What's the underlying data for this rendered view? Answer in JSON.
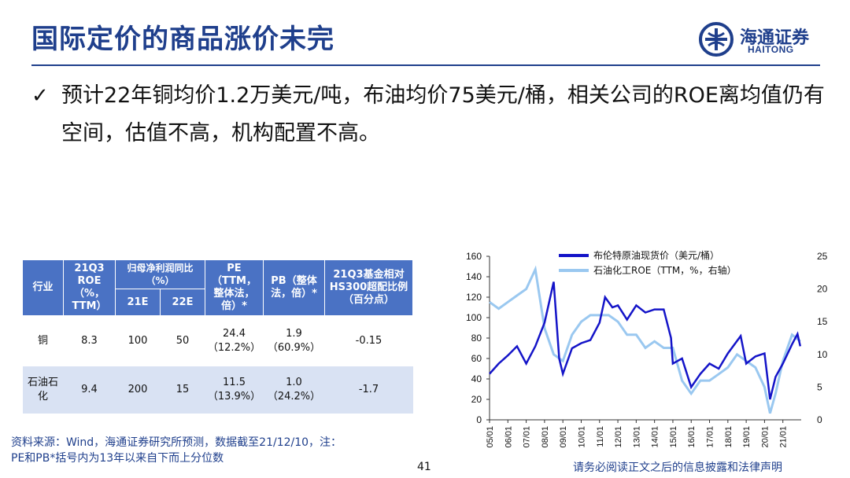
{
  "header": {
    "title": "国际定价的商品涨价未完",
    "logo_cn": "海通证券",
    "logo_en": "HAITONG"
  },
  "bullet": {
    "check": "✓",
    "text": "预计22年铜均价1.2万美元/吨，布油均价75美元/桶，相关公司的ROE离均值仍有空间，估值不高，机构配置不高。"
  },
  "table": {
    "headers": {
      "industry": "行业",
      "q3roe": "21Q3 ROE（%，TTM）",
      "profit_growth": "归母净利润同比（%）",
      "e21": "21E",
      "e22": "22E",
      "pe": "PE（TTM，整体法，倍）*",
      "pb": "PB（整体法，倍）*",
      "fund": "21Q3基金相对HS300超配比例（百分点）"
    },
    "rows": [
      {
        "industry": "铜",
        "roe": "8.3",
        "e21": "100",
        "e22": "50",
        "pe": "24.4",
        "pe_pct": "（12.2%）",
        "pb": "1.9",
        "pb_pct": "（60.9%）",
        "fund": "-0.15"
      },
      {
        "industry": "石油石化",
        "roe": "9.4",
        "e21": "200",
        "e22": "15",
        "pe": "11.5",
        "pe_pct": "（13.9%）",
        "pb": "1.0",
        "pb_pct": "（24.2%）",
        "fund": "-1.7"
      }
    ]
  },
  "source": {
    "line1": "资料来源：Wind，海通证券研究所预测，数据截至21/12/10，注：",
    "line2": "PE和PB*括号内为13年以来自下而上分位数"
  },
  "footer": {
    "page": "41",
    "disclaimer": "请务必阅读正文之后的信息披露和法律声明"
  },
  "chart_data": {
    "type": "line",
    "x_ticks": [
      "05/01",
      "06/01",
      "07/01",
      "08/01",
      "09/01",
      "10/01",
      "11/01",
      "12/01",
      "13/01",
      "14/01",
      "15/01",
      "16/01",
      "17/01",
      "18/01",
      "19/01",
      "20/01",
      "21/01"
    ],
    "y_left": {
      "min": 0,
      "max": 160,
      "ticks": [
        0,
        20,
        40,
        60,
        80,
        100,
        120,
        140,
        160
      ]
    },
    "y_right": {
      "min": 0,
      "max": 25,
      "ticks": [
        0,
        5,
        10,
        15,
        20,
        25
      ]
    },
    "legend_position": "top-center",
    "colors": {
      "brent": "#1414c8",
      "roe": "#9ac8f0"
    },
    "series": [
      {
        "name": "布伦特原油现货价（美元/桶）",
        "axis": "left",
        "x": [
          2005.0,
          2005.5,
          2006.0,
          2006.5,
          2007.0,
          2007.5,
          2008.0,
          2008.5,
          2008.8,
          2009.0,
          2009.5,
          2010.0,
          2010.5,
          2011.0,
          2011.3,
          2011.7,
          2012.0,
          2012.5,
          2013.0,
          2013.5,
          2014.0,
          2014.5,
          2014.9,
          2015.0,
          2015.5,
          2016.0,
          2016.5,
          2017.0,
          2017.5,
          2018.0,
          2018.7,
          2019.0,
          2019.5,
          2020.0,
          2020.3,
          2020.6,
          2021.0,
          2021.5,
          2021.8,
          2021.95
        ],
        "y": [
          45,
          55,
          63,
          72,
          55,
          72,
          95,
          135,
          60,
          45,
          70,
          75,
          78,
          95,
          120,
          110,
          112,
          98,
          112,
          105,
          108,
          108,
          80,
          55,
          60,
          32,
          45,
          55,
          50,
          65,
          82,
          55,
          62,
          65,
          20,
          42,
          55,
          74,
          84,
          72
        ]
      },
      {
        "name": "石油化工ROE（TTM，%，右轴）",
        "axis": "right",
        "x": [
          2005.0,
          2005.5,
          2006.0,
          2006.5,
          2007.0,
          2007.5,
          2008.0,
          2008.5,
          2009.0,
          2009.5,
          2010.0,
          2010.5,
          2011.0,
          2011.5,
          2012.0,
          2012.5,
          2013.0,
          2013.5,
          2014.0,
          2014.5,
          2015.0,
          2015.5,
          2016.0,
          2016.5,
          2017.0,
          2017.5,
          2018.0,
          2018.5,
          2019.0,
          2019.5,
          2020.0,
          2020.3,
          2020.6,
          2021.0,
          2021.5,
          2021.95
        ],
        "y": [
          18,
          17,
          18,
          19,
          20,
          23,
          14,
          10,
          9,
          13,
          15,
          16,
          16,
          16,
          15,
          13,
          13,
          11,
          12,
          11,
          11,
          6,
          4,
          6,
          6,
          7,
          8,
          10,
          9,
          8,
          5,
          1,
          4,
          9,
          13,
          12
        ]
      }
    ]
  }
}
